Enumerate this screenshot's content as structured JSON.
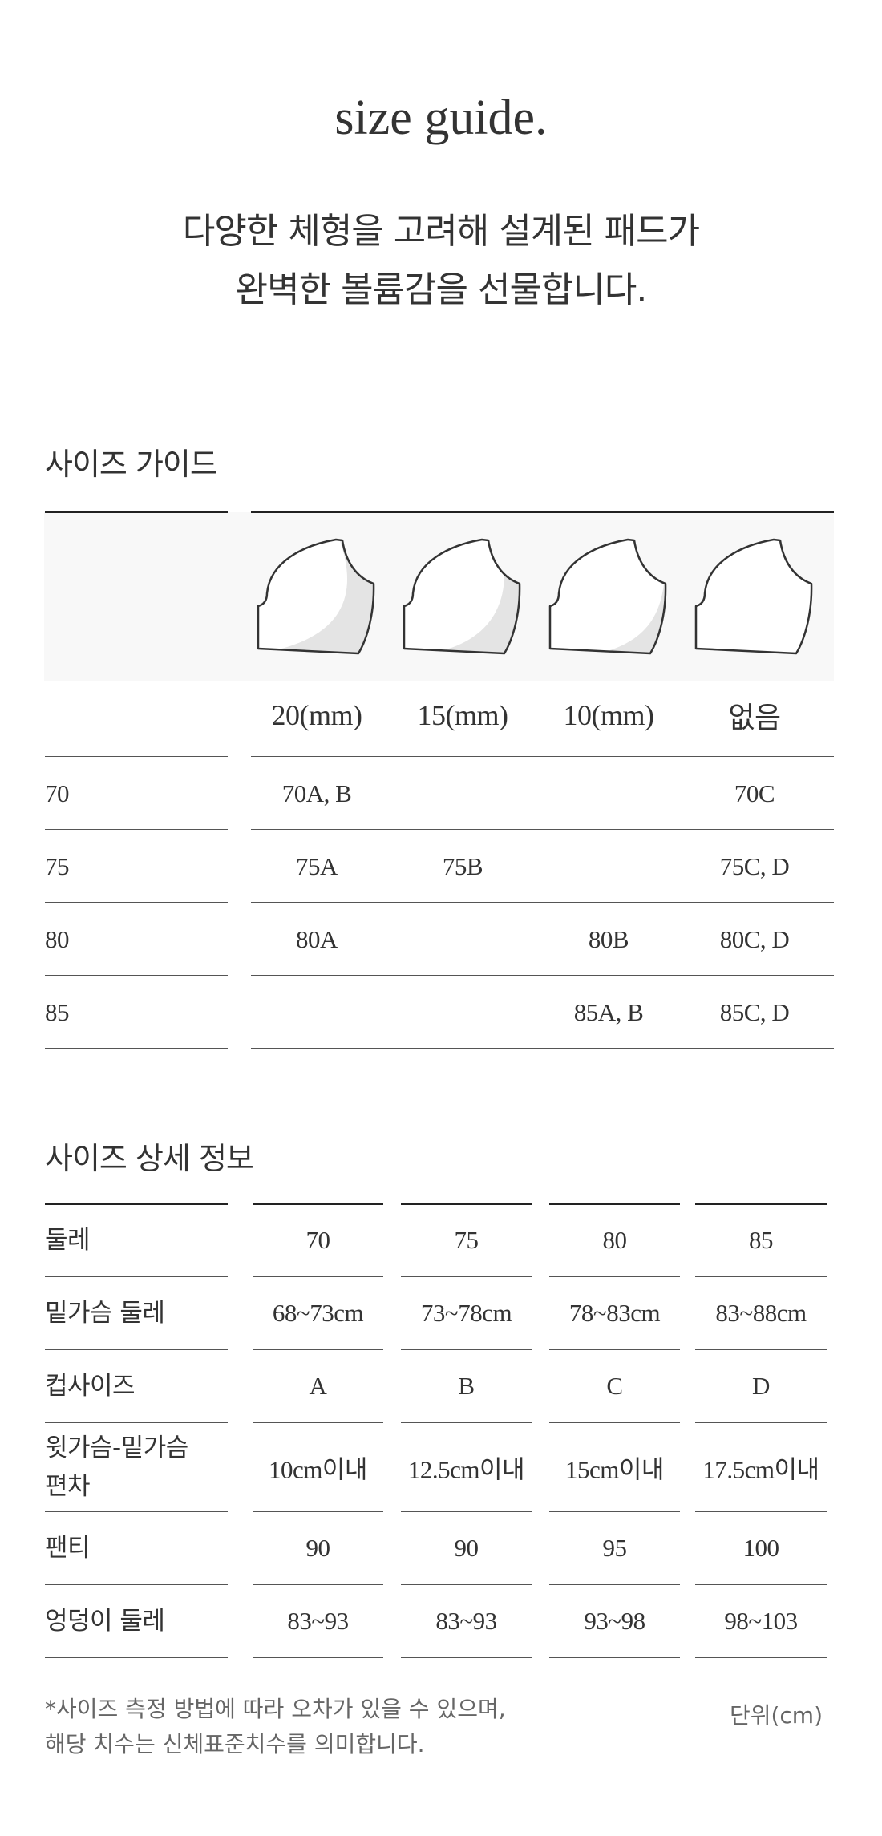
{
  "header": {
    "title": "size guide.",
    "subtitle_line1": "다양한 체형을 고려해 설계된 패드가",
    "subtitle_line2": "완벽한 볼륨감을 선물합니다."
  },
  "size_guide": {
    "heading": "사이즈 가이드",
    "pads": [
      {
        "label": "20(mm)",
        "icon": "pad-20mm-icon",
        "shade": 20
      },
      {
        "label": "15(mm)",
        "icon": "pad-15mm-icon",
        "shade": 15
      },
      {
        "label": "10(mm)",
        "icon": "pad-10mm-icon",
        "shade": 10
      },
      {
        "label": "없음",
        "icon": "pad-none-icon",
        "shade": 0
      }
    ],
    "rows": [
      {
        "band": "70",
        "cells": [
          "70A, B",
          "",
          "",
          "70C"
        ]
      },
      {
        "band": "75",
        "cells": [
          "75A",
          "75B",
          "",
          "75C, D"
        ]
      },
      {
        "band": "80",
        "cells": [
          "80A",
          "",
          "80B",
          "80C, D"
        ]
      },
      {
        "band": "85",
        "cells": [
          "",
          "",
          "85A, B",
          "85C, D"
        ]
      }
    ]
  },
  "size_detail": {
    "heading": "사이즈 상세 정보",
    "rows": [
      {
        "label": "둘레",
        "cells": [
          "70",
          "75",
          "80",
          "85"
        ]
      },
      {
        "label": "밑가슴 둘레",
        "cells": [
          "68~73cm",
          "73~78cm",
          "78~83cm",
          "83~88cm"
        ]
      },
      {
        "label": "컵사이즈",
        "cells": [
          "A",
          "B",
          "C",
          "D"
        ]
      },
      {
        "label": "윗가슴-밑가슴\n편차",
        "cells": [
          "10cm이내",
          "12.5cm이내",
          "15cm이내",
          "17.5cm이내"
        ]
      },
      {
        "label": "팬티",
        "cells": [
          "90",
          "90",
          "95",
          "100"
        ]
      },
      {
        "label": "엉덩이 둘레",
        "cells": [
          "83~93",
          "83~93",
          "93~98",
          "98~103"
        ]
      }
    ],
    "note_line1": "*사이즈 측정 방법에 따라 오차가 있을 수 있으며,",
    "note_line2": "해당 치수는 신체표준치수를 의미합니다.",
    "unit": "단위(cm)"
  },
  "colors": {
    "text": "#333333",
    "pad_bg": "#f8f8f8",
    "pad_shade": "#e4e4e4"
  }
}
